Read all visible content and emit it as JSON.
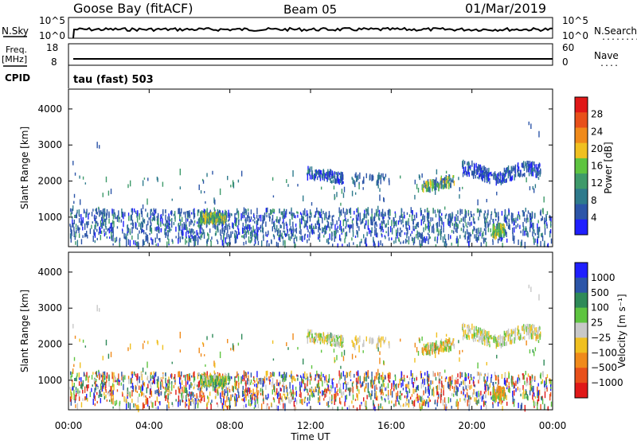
{
  "header": {
    "station": "Goose Bay (fitACF)",
    "beam": "Beam 05",
    "date": "01/Mar/2019"
  },
  "panels": {
    "nsky_label": "N.Sky",
    "nsearch_label": "N.Search",
    "nsearch_dots": "........",
    "freq_label_line1": "Freq.",
    "freq_label_line2": "[MHz]",
    "nave_label": "Nave",
    "nave_dots": "....",
    "cpid_label": "CPID",
    "cpid_value": "tau (fast) 503",
    "noise_left_ticks": [
      "10^5",
      "10^0"
    ],
    "noise_right_ticks": [
      "10^5",
      "10^0"
    ],
    "freq_left_ticks": [
      "18",
      "8"
    ],
    "freq_right_ticks": [
      "60",
      "0"
    ]
  },
  "colors": {
    "power_scale": [
      "#1f1fff",
      "#2c55a8",
      "#2e7a8c",
      "#3e9a6a",
      "#5ec440",
      "#f0c020",
      "#f08a1a",
      "#e8501a",
      "#e01818"
    ],
    "velocity_scale": [
      "#e01818",
      "#e8501a",
      "#f08a1a",
      "#f0c020",
      "#c8c8c8",
      "#5ec440",
      "#2e8a58",
      "#2c55a8",
      "#1f1fff"
    ]
  },
  "chart_data": [
    {
      "type": "heatmap",
      "title": "",
      "xlabel": "Time UT",
      "ylabel": "Slant Range [km]",
      "x_ticks": [
        "00:00",
        "04:00",
        "08:00",
        "12:00",
        "16:00",
        "20:00",
        "00:00"
      ],
      "xlim_hours": [
        0,
        24
      ],
      "ylim": [
        180,
        4550
      ],
      "y_ticks": [
        1000,
        2000,
        3000,
        4000
      ],
      "colorbar_label": "Power [dB]",
      "colorbar_ticks": [
        "4",
        "8",
        "12",
        "16",
        "20",
        "24",
        "28"
      ],
      "colorbar_range": [
        0,
        30
      ]
    },
    {
      "type": "heatmap",
      "title": "",
      "xlabel": "Time UT",
      "ylabel": "Slant Range [km]",
      "x_ticks": [
        "00:00",
        "04:00",
        "08:00",
        "12:00",
        "16:00",
        "20:00",
        "00:00"
      ],
      "xlim_hours": [
        0,
        24
      ],
      "ylim": [
        180,
        4550
      ],
      "y_ticks": [
        1000,
        2000,
        3000,
        4000
      ],
      "colorbar_label": "Velocity [m s⁻¹]",
      "colorbar_ticks": [
        "1000",
        "500",
        "100",
        "25",
        "−25",
        "−100",
        "−500",
        "−1000"
      ]
    }
  ]
}
